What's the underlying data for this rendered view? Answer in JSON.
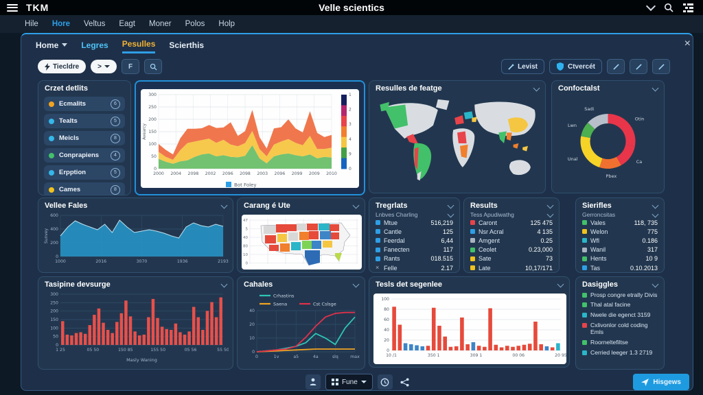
{
  "topbar": {
    "logo": "TKM",
    "title": "Velle scientics"
  },
  "menu": {
    "items": [
      {
        "label": "Hile"
      },
      {
        "label": "Hore",
        "active": true
      },
      {
        "label": "Veltus"
      },
      {
        "label": "Eagt"
      },
      {
        "label": "Moner"
      },
      {
        "label": "Polos"
      },
      {
        "label": "Holp"
      }
    ]
  },
  "tabs": {
    "close": "×",
    "items": [
      {
        "label": "Home",
        "caret": true
      },
      {
        "label": "Legres",
        "color": "cyan"
      },
      {
        "label": "Pesulles",
        "active": true
      },
      {
        "label": "Scierthis"
      }
    ]
  },
  "toolbar": {
    "field_button": "Tiecldre",
    "nav_button": ">",
    "f_button": "F",
    "levist": "Levist",
    "ctvercet": "Ctvercét"
  },
  "bottom": {
    "fune": "Fune",
    "hisgews": "Hisgews"
  },
  "panels": {
    "crzet": {
      "title": "Crzet detlits",
      "items": [
        {
          "label": "Ecmalits",
          "dot": "#f0a321",
          "badge": "6"
        },
        {
          "label": "Tealts",
          "dot": "#35b7e8",
          "badge": "5"
        },
        {
          "label": "Meicls",
          "dot": "#35b7e8",
          "badge": "8"
        },
        {
          "label": "Conprapiens",
          "dot": "#43c06a",
          "badge": "4"
        },
        {
          "label": "Erpption",
          "dot": "#35b7e8",
          "badge": "5"
        },
        {
          "label": "Cames",
          "dot": "#f0c21d",
          "badge": "8"
        }
      ]
    },
    "featge": {
      "title": "Resulles de featge"
    },
    "confoctalst": {
      "title": "Confoctalst"
    },
    "vellee": {
      "title": "Vellee Fales"
    },
    "carang": {
      "title": "Carang é Ute"
    },
    "tasipine": {
      "title": "Tasipine devsurge"
    },
    "cahales": {
      "title": "Cahales"
    },
    "tesls": {
      "title": "Tesls det segenlee"
    },
    "dasiggles": {
      "title": "Dasiggles"
    }
  },
  "stats": [
    {
      "id": "tregrlats",
      "title": "Tregrlats",
      "subtitle": "Lnbves Charling",
      "rows": [
        {
          "icon": "#2e9fe6",
          "label": "Mtue",
          "value": "516,219"
        },
        {
          "icon": "#2e9fe6",
          "label": "Cantle",
          "value": "125"
        },
        {
          "icon": "#2e9fe6",
          "label": "Feerdal",
          "value": "6,44"
        },
        {
          "icon": "#2e9fe6",
          "label": "Fanecten",
          "value": "117"
        },
        {
          "icon": "#2e9fe6",
          "label": "Rants",
          "value": "018.515"
        },
        {
          "icon": "x",
          "label": "Felle",
          "value": "2.17"
        }
      ]
    },
    {
      "id": "results",
      "title": "Results",
      "subtitle": "Tess Apudiwathg",
      "rows": [
        {
          "icon": "#e8434a",
          "label": "Caront",
          "value": "125 475"
        },
        {
          "icon": "#2e9fe6",
          "label": "Nsr Acral",
          "value": "4 135"
        },
        {
          "icon": "#aab4c0",
          "label": "Amgent",
          "value": "0.25"
        },
        {
          "icon": "#43c06a",
          "label": "Ceolet",
          "value": "0.23,000"
        },
        {
          "icon": "#f0c21d",
          "label": "Sate",
          "value": "73"
        },
        {
          "icon": "#f0c21d",
          "label": "Late",
          "value": "10,17/171"
        }
      ]
    },
    {
      "id": "sierifles",
      "title": "Sierifles",
      "subtitle": "Gerroncsitas",
      "rows": [
        {
          "icon": "#43c06a",
          "label": "Vales",
          "value": "118, 735"
        },
        {
          "icon": "#f0c21d",
          "label": "Welon",
          "value": "775"
        },
        {
          "icon": "#2bb5c9",
          "label": "Wfl",
          "value": "0.186"
        },
        {
          "icon": "#aab4c0",
          "label": "Wanil",
          "value": "317"
        },
        {
          "icon": "#43c06a",
          "label": "Hents",
          "value": "10 9"
        },
        {
          "icon": "#2e9fe6",
          "label": "Tas",
          "value": "0.10.2013"
        }
      ]
    }
  ],
  "dasiggles": {
    "items": [
      {
        "icon": "#43c06a",
        "text": "Prosp congre etrally Divis"
      },
      {
        "icon": "#43c06a",
        "text": "Thal atal facine"
      },
      {
        "icon": "#2bb5c9",
        "text": "Nwele die egenct 3159"
      },
      {
        "icon": "#e8434a",
        "text": "Cxlivonlor cold coding Emls"
      },
      {
        "icon": "#43c06a",
        "text": "Roorneltefiltse"
      },
      {
        "icon": "#2bb5c9",
        "text": "Cerried leeger 1.3 2719"
      }
    ]
  },
  "us_map": {
    "yticks": [
      "47",
      "5",
      "40",
      "80",
      "10",
      "0"
    ]
  },
  "chart_data": [
    {
      "id": "stacked",
      "type": "stackarea",
      "dark": false,
      "m": [
        8,
        40,
        28,
        26
      ],
      "ymax": 300,
      "title": "",
      "ylabel": "Avearcy",
      "yticks": [
        "300",
        "250",
        "200",
        "150",
        "100",
        "50",
        "0"
      ],
      "xticks": [
        "2000",
        "2004",
        "2098",
        "2002",
        "2096",
        "2098",
        "2003",
        "2096",
        "2099",
        "2009",
        "2010"
      ],
      "series": [
        {
          "name": "green",
          "color": "#6abf69",
          "values": [
            40,
            28,
            20,
            30,
            34,
            48,
            58,
            62,
            50,
            55,
            48,
            46,
            52,
            95,
            42,
            22,
            50,
            58,
            62,
            55,
            50,
            58,
            42,
            48,
            45
          ]
        },
        {
          "name": "yellow",
          "color": "#f5c642",
          "values": [
            28,
            20,
            16,
            45,
            70,
            62,
            58,
            60,
            55,
            62,
            50,
            45,
            52,
            58,
            38,
            28,
            48,
            52,
            58,
            50,
            45,
            75,
            38,
            32,
            40
          ]
        },
        {
          "name": "orange",
          "color": "#ef7043",
          "values": [
            32,
            28,
            22,
            48,
            58,
            52,
            48,
            55,
            60,
            50,
            90,
            42,
            48,
            85,
            48,
            32,
            65,
            58,
            80,
            58,
            52,
            100,
            65,
            48,
            52
          ]
        }
      ],
      "legend": [
        {
          "label": "Bot Foley",
          "color": "#2e9fe6"
        }
      ],
      "legend_pos": "bottom",
      "colorbar": {
        "colors": [
          "#13205e",
          "#b3266e",
          "#e8434a",
          "#f07f2e",
          "#f5c642",
          "#43a047",
          "#1565c0"
        ],
        "ticks": [
          "1",
          "2",
          "3",
          "4",
          "9",
          "0"
        ]
      }
    },
    {
      "id": "vellee",
      "type": "area",
      "dark": true,
      "m": [
        6,
        8,
        14,
        26
      ],
      "ymax": 600,
      "color": "#2694c4",
      "stroke": "#bfe2f2",
      "ylabel": "Sunvey",
      "yticks": [
        "600",
        "400",
        "200",
        "0"
      ],
      "xticks": [
        "1000",
        "2016",
        "3070",
        "1936",
        "2193"
      ],
      "values": [
        300,
        430,
        520,
        470,
        430,
        390,
        470,
        350,
        530,
        430,
        350,
        370,
        390,
        370,
        340,
        300,
        270,
        430,
        490,
        450,
        430,
        470,
        440
      ]
    },
    {
      "id": "tasipine",
      "type": "bars",
      "dark": true,
      "m": [
        6,
        8,
        26,
        26
      ],
      "ymax": 320,
      "color": "#e8504a",
      "xlabel": "Masly Waning",
      "yticks": [
        "300",
        "250",
        "200",
        "150",
        "100",
        "50",
        "0"
      ],
      "xticks": [
        "1 25",
        "05 50",
        "150 85",
        "155 50",
        "05 56",
        "55 50"
      ],
      "values": [
        150,
        65,
        60,
        75,
        80,
        70,
        125,
        190,
        230,
        140,
        95,
        75,
        145,
        200,
        280,
        180,
        85,
        60,
        65,
        175,
        290,
        170,
        115,
        100,
        95,
        135,
        80,
        65,
        85,
        240,
        175,
        95,
        215,
        270,
        175,
        300
      ]
    },
    {
      "id": "cahales",
      "type": "lines",
      "dark": true,
      "m": [
        30,
        10,
        16,
        22
      ],
      "ymax": 45,
      "yticks": [
        "40",
        "20",
        "10",
        "0"
      ],
      "xticks": [
        "0",
        "1v",
        "a5",
        "4a",
        "slq",
        "max"
      ],
      "legend_pos": "topleft",
      "series": [
        {
          "name": "Crhastins",
          "color": "#2ec4b6",
          "values": [
            0,
            1,
            2,
            4,
            6,
            10,
            20,
            15,
            8,
            26,
            38
          ]
        },
        {
          "name": "Saena",
          "color": "#f0a321",
          "values": [
            0,
            0.5,
            1,
            1.5,
            2,
            2.5,
            3,
            3,
            3,
            3,
            3
          ]
        },
        {
          "name": "Cst Cslsge",
          "color": "#e0314b",
          "values": [
            0,
            1,
            2,
            3,
            6,
            16,
            28,
            38,
            42,
            43,
            43
          ]
        }
      ]
    },
    {
      "id": "tesls",
      "type": "bars",
      "dark": false,
      "m": [
        8,
        8,
        20,
        26
      ],
      "ymax": 100,
      "yticks": [
        "100",
        "80",
        "60",
        "40",
        "20",
        "0"
      ],
      "xticks": [
        "10 /1",
        "350 1",
        "309 1",
        "00 06",
        "20 95"
      ],
      "values": [
        85,
        50,
        14,
        12,
        10,
        8,
        9,
        83,
        48,
        27,
        7,
        8,
        64,
        12,
        16,
        9,
        7,
        82,
        11,
        6,
        9,
        7,
        9,
        11,
        13,
        56,
        12,
        8,
        6,
        14
      ],
      "colors": [
        "#e64a3b",
        "#e64a3b",
        "#3d85c6",
        "#3d85c6",
        "#3d85c6",
        "#3d85c6",
        "#e64a3b",
        "#e64a3b",
        "#e64a3b",
        "#e64a3b",
        "#e64a3b",
        "#e64a3b",
        "#e64a3b",
        "#e64a3b",
        "#3d85c6",
        "#e64a3b",
        "#e64a3b",
        "#e64a3b",
        "#e64a3b",
        "#e64a3b",
        "#e64a3b",
        "#e64a3b",
        "#e64a3b",
        "#e64a3b",
        "#e64a3b",
        "#e64a3b",
        "#e64a3b",
        "#3d85c6",
        "#e64a3b",
        "#2bb5c9"
      ]
    },
    {
      "id": "donut",
      "type": "donut",
      "slices": [
        {
          "label": "Otin",
          "value": 28,
          "color": "#e8354a"
        },
        {
          "label": "Ca",
          "value": 14,
          "color": "#e8354a"
        },
        {
          "label": "Pbex",
          "value": 13,
          "color": "#f07030"
        },
        {
          "label": "Unal",
          "value": 23,
          "color": "#f5d327"
        },
        {
          "label": "Lwn",
          "value": 9,
          "color": "#4caf50"
        },
        {
          "label": "Sadi",
          "value": 13,
          "color": "#b7bfca"
        }
      ]
    }
  ]
}
